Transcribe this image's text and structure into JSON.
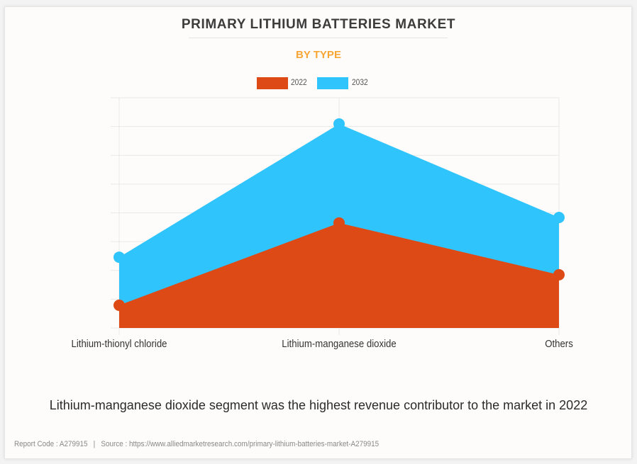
{
  "header": {
    "title": "PRIMARY LITHIUM BATTERIES MARKET",
    "subtitle": "BY TYPE"
  },
  "colors": {
    "series_2022": "#dd4a15",
    "series_2032": "#30c4fc",
    "subtitle": "#f7a634",
    "grid": "#e8e8e8"
  },
  "legend": {
    "items": [
      {
        "label": "2022",
        "color": "#dd4a15"
      },
      {
        "label": "2032",
        "color": "#30c4fc"
      }
    ]
  },
  "chart_data": {
    "type": "area",
    "title": "PRIMARY LITHIUM BATTERIES MARKET",
    "subtitle": "BY TYPE",
    "categories": [
      "Lithium-thionyl chloride",
      "Lithium-manganese dioxide",
      "Others"
    ],
    "series": [
      {
        "name": "2032",
        "color": "#30c4fc",
        "values": [
          2.46,
          7.09,
          3.84
        ]
      },
      {
        "name": "2022",
        "color": "#dd4a15",
        "values": [
          0.79,
          3.65,
          1.85
        ]
      }
    ],
    "xlabel": "",
    "ylabel": "",
    "ylim": [
      0,
      8
    ],
    "y_gridlines": 9,
    "y_tick_labels_shown": false,
    "grid": true,
    "legend_position": "top-center",
    "stacked": false,
    "markers": true
  },
  "caption": "Lithium-manganese dioxide segment was the highest revenue contributor to the market in 2022",
  "footer": {
    "report_code": "Report Code : A279915",
    "separator": "|",
    "source": "Source : https://www.alliedmarketresearch.com/primary-lithium-batteries-market-A279915"
  }
}
